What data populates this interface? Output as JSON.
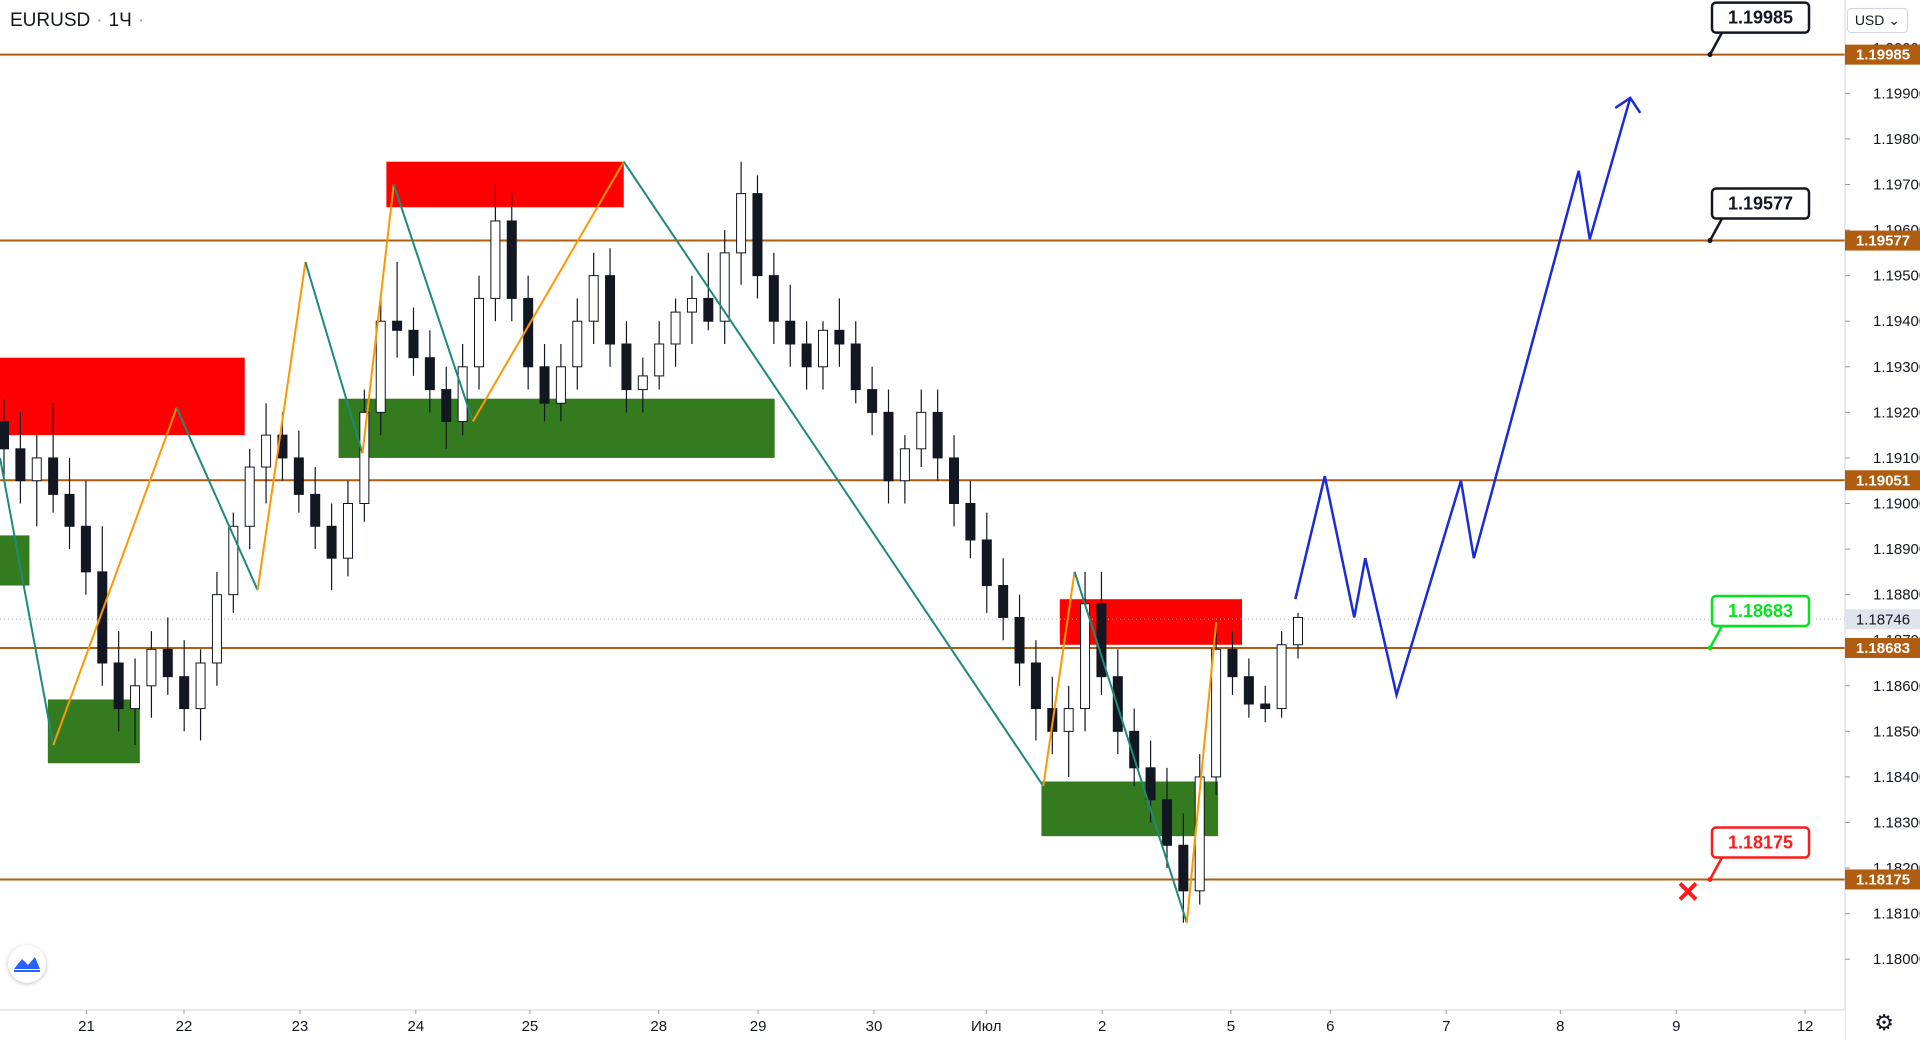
{
  "header": {
    "symbol": "EURUSD",
    "interval": "1Ч",
    "currency_button": "USD"
  },
  "colors": {
    "level_line": "#b05d10",
    "supply_zone": "#ff0000",
    "demand_zone": "#347a1e",
    "zigzag_down": "#1d8a7a",
    "zigzag_up": "#ff9800",
    "forecast": "#1b2bd6",
    "candle": "#131722",
    "label_green": "#00e61a",
    "label_red": "#ff1a1a"
  },
  "chart_data": {
    "type": "candlestick",
    "y_axis": {
      "min": 1.1795,
      "max": 1.2005,
      "ticks": [
        "1.18000",
        "1.18100",
        "1.18200",
        "1.18300",
        "1.18400",
        "1.18500",
        "1.18600",
        "1.18700",
        "1.18800",
        "1.18900",
        "1.19000",
        "1.19100",
        "1.19200",
        "1.19300",
        "1.19400",
        "1.19500",
        "1.19600",
        "1.19700",
        "1.19800",
        "1.19900",
        "1.20000"
      ],
      "current_price": "1.18746"
    },
    "x_axis": {
      "labels": [
        "21",
        "22",
        "23",
        "24",
        "25",
        "28",
        "29",
        "30",
        "Июл",
        "2",
        "5",
        "6",
        "7",
        "8",
        "9",
        "12"
      ]
    },
    "levels": [
      {
        "value": 1.19985,
        "label": "1.19985",
        "callout": "1.19985",
        "callout_style": "black"
      },
      {
        "value": 1.19577,
        "label": "1.19577",
        "callout": "1.19577",
        "callout_style": "black"
      },
      {
        "value": 1.19051,
        "label": "1.19051",
        "callout": "",
        "callout_style": "none"
      },
      {
        "value": 1.18683,
        "label": "1.18683",
        "callout": "1.18683",
        "callout_style": "green"
      },
      {
        "value": 1.18175,
        "label": "1.18175",
        "callout": "1.18175",
        "callout_style": "red"
      }
    ],
    "zones": [
      {
        "kind": "supply",
        "x1": 0.0,
        "x2": 0.133,
        "top": 1.1932,
        "bottom": 1.1915
      },
      {
        "kind": "supply",
        "x1": 0.21,
        "x2": 0.339,
        "top": 1.1975,
        "bottom": 1.1965
      },
      {
        "kind": "supply",
        "x1": 0.576,
        "x2": 0.675,
        "top": 1.1879,
        "bottom": 1.1869
      },
      {
        "kind": "demand",
        "x1": 0.0,
        "x2": 0.016,
        "top": 1.1893,
        "bottom": 1.1882
      },
      {
        "kind": "demand",
        "x1": 0.026,
        "x2": 0.076,
        "top": 1.1857,
        "bottom": 1.1843
      },
      {
        "kind": "demand",
        "x1": 0.184,
        "x2": 0.421,
        "top": 1.1923,
        "bottom": 1.191
      },
      {
        "kind": "demand",
        "x1": 0.566,
        "x2": 0.662,
        "top": 1.1839,
        "bottom": 1.1827
      }
    ],
    "zigzag": [
      {
        "x": 0.0,
        "y": 1.191
      },
      {
        "x": 0.029,
        "y": 1.1847
      },
      {
        "x": 0.096,
        "y": 1.1921
      },
      {
        "x": 0.14,
        "y": 1.1881
      },
      {
        "x": 0.166,
        "y": 1.1953
      },
      {
        "x": 0.197,
        "y": 1.1911
      },
      {
        "x": 0.214,
        "y": 1.197
      },
      {
        "x": 0.257,
        "y": 1.1918
      },
      {
        "x": 0.339,
        "y": 1.1975
      },
      {
        "x": 0.567,
        "y": 1.1838
      },
      {
        "x": 0.584,
        "y": 1.1885
      },
      {
        "x": 0.645,
        "y": 1.1808
      },
      {
        "x": 0.661,
        "y": 1.1874
      }
    ],
    "forecast_path": [
      {
        "x": 0.704,
        "y": 1.1879
      },
      {
        "x": 0.72,
        "y": 1.1906
      },
      {
        "x": 0.736,
        "y": 1.1875
      },
      {
        "x": 0.742,
        "y": 1.1888
      },
      {
        "x": 0.759,
        "y": 1.1858
      },
      {
        "x": 0.794,
        "y": 1.1905
      },
      {
        "x": 0.801,
        "y": 1.1888
      },
      {
        "x": 0.858,
        "y": 1.1973
      },
      {
        "x": 0.864,
        "y": 1.1958
      },
      {
        "x": 0.886,
        "y": 1.1989
      }
    ],
    "candles": [
      {
        "o": 1.1918,
        "h": 1.1923,
        "l": 1.1905,
        "c": 1.1912
      },
      {
        "o": 1.1912,
        "h": 1.192,
        "l": 1.19,
        "c": 1.1905
      },
      {
        "o": 1.1905,
        "h": 1.1915,
        "l": 1.1895,
        "c": 1.191
      },
      {
        "o": 1.191,
        "h": 1.1922,
        "l": 1.1898,
        "c": 1.1902
      },
      {
        "o": 1.1902,
        "h": 1.191,
        "l": 1.189,
        "c": 1.1895
      },
      {
        "o": 1.1895,
        "h": 1.1905,
        "l": 1.188,
        "c": 1.1885
      },
      {
        "o": 1.1885,
        "h": 1.1895,
        "l": 1.186,
        "c": 1.1865
      },
      {
        "o": 1.1865,
        "h": 1.1872,
        "l": 1.185,
        "c": 1.1855
      },
      {
        "o": 1.1855,
        "h": 1.1866,
        "l": 1.1847,
        "c": 1.186
      },
      {
        "o": 1.186,
        "h": 1.1872,
        "l": 1.1853,
        "c": 1.1868
      },
      {
        "o": 1.1868,
        "h": 1.1875,
        "l": 1.1858,
        "c": 1.1862
      },
      {
        "o": 1.1862,
        "h": 1.187,
        "l": 1.185,
        "c": 1.1855
      },
      {
        "o": 1.1855,
        "h": 1.1868,
        "l": 1.1848,
        "c": 1.1865
      },
      {
        "o": 1.1865,
        "h": 1.1885,
        "l": 1.186,
        "c": 1.188
      },
      {
        "o": 1.188,
        "h": 1.1898,
        "l": 1.1876,
        "c": 1.1895
      },
      {
        "o": 1.1895,
        "h": 1.1912,
        "l": 1.189,
        "c": 1.1908
      },
      {
        "o": 1.1908,
        "h": 1.1922,
        "l": 1.19,
        "c": 1.1915
      },
      {
        "o": 1.1915,
        "h": 1.192,
        "l": 1.1905,
        "c": 1.191
      },
      {
        "o": 1.191,
        "h": 1.1916,
        "l": 1.1898,
        "c": 1.1902
      },
      {
        "o": 1.1902,
        "h": 1.1908,
        "l": 1.189,
        "c": 1.1895
      },
      {
        "o": 1.1895,
        "h": 1.19,
        "l": 1.1881,
        "c": 1.1888
      },
      {
        "o": 1.1888,
        "h": 1.1905,
        "l": 1.1884,
        "c": 1.19
      },
      {
        "o": 1.19,
        "h": 1.1925,
        "l": 1.1896,
        "c": 1.192
      },
      {
        "o": 1.192,
        "h": 1.1945,
        "l": 1.1915,
        "c": 1.194
      },
      {
        "o": 1.194,
        "h": 1.1953,
        "l": 1.1932,
        "c": 1.1938
      },
      {
        "o": 1.1938,
        "h": 1.1943,
        "l": 1.1928,
        "c": 1.1932
      },
      {
        "o": 1.1932,
        "h": 1.1938,
        "l": 1.192,
        "c": 1.1925
      },
      {
        "o": 1.1925,
        "h": 1.193,
        "l": 1.1912,
        "c": 1.1918
      },
      {
        "o": 1.1918,
        "h": 1.1935,
        "l": 1.1915,
        "c": 1.193
      },
      {
        "o": 1.193,
        "h": 1.195,
        "l": 1.1925,
        "c": 1.1945
      },
      {
        "o": 1.1945,
        "h": 1.197,
        "l": 1.194,
        "c": 1.1962
      },
      {
        "o": 1.1962,
        "h": 1.1968,
        "l": 1.194,
        "c": 1.1945
      },
      {
        "o": 1.1945,
        "h": 1.195,
        "l": 1.1925,
        "c": 1.193
      },
      {
        "o": 1.193,
        "h": 1.1935,
        "l": 1.1918,
        "c": 1.1922
      },
      {
        "o": 1.1922,
        "h": 1.1935,
        "l": 1.1918,
        "c": 1.193
      },
      {
        "o": 1.193,
        "h": 1.1945,
        "l": 1.1925,
        "c": 1.194
      },
      {
        "o": 1.194,
        "h": 1.1955,
        "l": 1.1935,
        "c": 1.195
      },
      {
        "o": 1.195,
        "h": 1.1956,
        "l": 1.193,
        "c": 1.1935
      },
      {
        "o": 1.1935,
        "h": 1.194,
        "l": 1.192,
        "c": 1.1925
      },
      {
        "o": 1.1925,
        "h": 1.1932,
        "l": 1.192,
        "c": 1.1928
      },
      {
        "o": 1.1928,
        "h": 1.194,
        "l": 1.1925,
        "c": 1.1935
      },
      {
        "o": 1.1935,
        "h": 1.1945,
        "l": 1.193,
        "c": 1.1942
      },
      {
        "o": 1.1942,
        "h": 1.195,
        "l": 1.1935,
        "c": 1.1945
      },
      {
        "o": 1.1945,
        "h": 1.1955,
        "l": 1.1938,
        "c": 1.194
      },
      {
        "o": 1.194,
        "h": 1.196,
        "l": 1.1935,
        "c": 1.1955
      },
      {
        "o": 1.1955,
        "h": 1.1975,
        "l": 1.1948,
        "c": 1.1968
      },
      {
        "o": 1.1968,
        "h": 1.1972,
        "l": 1.1945,
        "c": 1.195
      },
      {
        "o": 1.195,
        "h": 1.1955,
        "l": 1.1935,
        "c": 1.194
      },
      {
        "o": 1.194,
        "h": 1.1948,
        "l": 1.193,
        "c": 1.1935
      },
      {
        "o": 1.1935,
        "h": 1.194,
        "l": 1.1925,
        "c": 1.193
      },
      {
        "o": 1.193,
        "h": 1.194,
        "l": 1.1925,
        "c": 1.1938
      },
      {
        "o": 1.1938,
        "h": 1.1945,
        "l": 1.193,
        "c": 1.1935
      },
      {
        "o": 1.1935,
        "h": 1.194,
        "l": 1.1922,
        "c": 1.1925
      },
      {
        "o": 1.1925,
        "h": 1.193,
        "l": 1.1915,
        "c": 1.192
      },
      {
        "o": 1.192,
        "h": 1.1925,
        "l": 1.19,
        "c": 1.1905
      },
      {
        "o": 1.1905,
        "h": 1.1915,
        "l": 1.19,
        "c": 1.1912
      },
      {
        "o": 1.1912,
        "h": 1.1925,
        "l": 1.1908,
        "c": 1.192
      },
      {
        "o": 1.192,
        "h": 1.1925,
        "l": 1.1905,
        "c": 1.191
      },
      {
        "o": 1.191,
        "h": 1.1915,
        "l": 1.1895,
        "c": 1.19
      },
      {
        "o": 1.19,
        "h": 1.1905,
        "l": 1.1888,
        "c": 1.1892
      },
      {
        "o": 1.1892,
        "h": 1.1898,
        "l": 1.1876,
        "c": 1.1882
      },
      {
        "o": 1.1882,
        "h": 1.1888,
        "l": 1.187,
        "c": 1.1875
      },
      {
        "o": 1.1875,
        "h": 1.188,
        "l": 1.186,
        "c": 1.1865
      },
      {
        "o": 1.1865,
        "h": 1.187,
        "l": 1.1848,
        "c": 1.1855
      },
      {
        "o": 1.1855,
        "h": 1.1862,
        "l": 1.1845,
        "c": 1.185
      },
      {
        "o": 1.185,
        "h": 1.186,
        "l": 1.184,
        "c": 1.1855
      },
      {
        "o": 1.1855,
        "h": 1.1885,
        "l": 1.185,
        "c": 1.1878
      },
      {
        "o": 1.1878,
        "h": 1.1885,
        "l": 1.1858,
        "c": 1.1862
      },
      {
        "o": 1.1862,
        "h": 1.1868,
        "l": 1.1845,
        "c": 1.185
      },
      {
        "o": 1.185,
        "h": 1.1855,
        "l": 1.1838,
        "c": 1.1842
      },
      {
        "o": 1.1842,
        "h": 1.1848,
        "l": 1.183,
        "c": 1.1835
      },
      {
        "o": 1.1835,
        "h": 1.1842,
        "l": 1.182,
        "c": 1.1825
      },
      {
        "o": 1.1825,
        "h": 1.1832,
        "l": 1.1808,
        "c": 1.1815
      },
      {
        "o": 1.1815,
        "h": 1.1845,
        "l": 1.1812,
        "c": 1.184
      },
      {
        "o": 1.184,
        "h": 1.1874,
        "l": 1.1836,
        "c": 1.1868
      },
      {
        "o": 1.1868,
        "h": 1.1872,
        "l": 1.1858,
        "c": 1.1862
      },
      {
        "o": 1.1862,
        "h": 1.1866,
        "l": 1.1853,
        "c": 1.1856
      },
      {
        "o": 1.1856,
        "h": 1.186,
        "l": 1.1852,
        "c": 1.1855
      },
      {
        "o": 1.1855,
        "h": 1.1872,
        "l": 1.1853,
        "c": 1.1869
      },
      {
        "o": 1.1869,
        "h": 1.1876,
        "l": 1.1866,
        "c": 1.1875
      }
    ]
  }
}
